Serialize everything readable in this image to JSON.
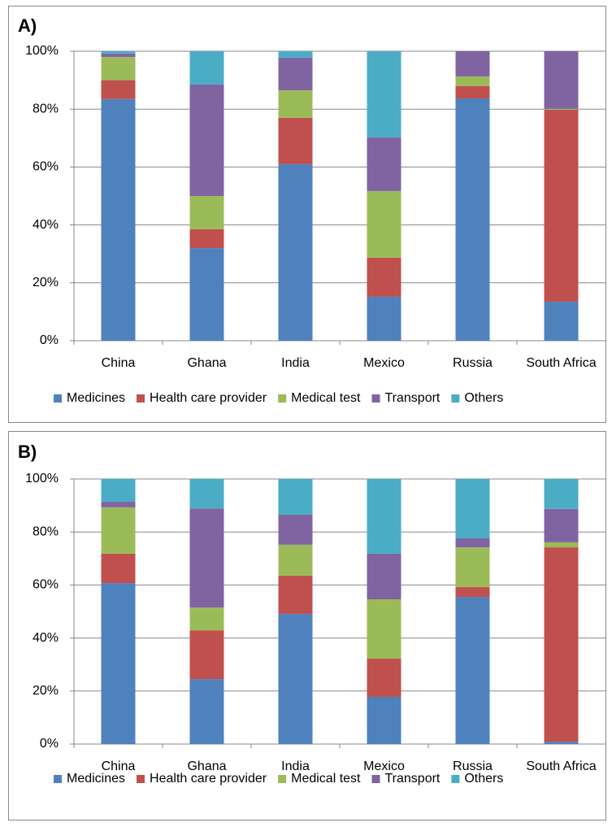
{
  "chart_data": [
    {
      "type": "stacked_bar",
      "title": "A)",
      "categories": [
        "China",
        "Ghana",
        "India",
        "Mexico",
        "Russia",
        "South Africa"
      ],
      "series": [
        {
          "name": "Medicines",
          "color": "#4f81bd",
          "values": [
            83.5,
            32,
            61,
            15.2,
            83.7,
            13.5
          ]
        },
        {
          "name": "Health care provider",
          "color": "#c0504d",
          "values": [
            6.5,
            6.5,
            16,
            13.5,
            4.3,
            66.3
          ]
        },
        {
          "name": "Medical test",
          "color": "#9bbb59",
          "values": [
            8,
            11.5,
            9.5,
            23,
            3.3,
            0.3
          ]
        },
        {
          "name": "Transport",
          "color": "#8064a2",
          "values": [
            1.2,
            38.5,
            11.3,
            18.5,
            8.7,
            19.9
          ]
        },
        {
          "name": "Others",
          "color": "#4bacc6",
          "values": [
            0.8,
            11.5,
            2.2,
            29.8,
            0,
            0
          ]
        }
      ],
      "ylim": [
        0,
        100
      ],
      "yticks": [
        {
          "value": 0,
          "label": "0%"
        },
        {
          "value": 20,
          "label": "20%"
        },
        {
          "value": 40,
          "label": "40%"
        },
        {
          "value": 60,
          "label": "60%"
        },
        {
          "value": 80,
          "label": "80%"
        },
        {
          "value": 100,
          "label": "100%"
        }
      ],
      "grid": true,
      "legend": "bottom"
    },
    {
      "type": "stacked_bar",
      "title": "B)",
      "categories": [
        "China",
        "Ghana",
        "India",
        "Mexico",
        "Russia",
        "South Africa"
      ],
      "series": [
        {
          "name": "Medicines",
          "color": "#4f81bd",
          "values": [
            60.7,
            24.5,
            49.1,
            17.8,
            55.5,
            0.9
          ]
        },
        {
          "name": "Health care provider",
          "color": "#c0504d",
          "values": [
            11.1,
            18.4,
            14.4,
            14.4,
            3.7,
            73.3
          ]
        },
        {
          "name": "Medical test",
          "color": "#9bbb59",
          "values": [
            17.5,
            8.6,
            11.7,
            22.4,
            15,
            1.9
          ]
        },
        {
          "name": "Transport",
          "color": "#8064a2",
          "values": [
            2.1,
            37.4,
            11.3,
            17.2,
            3.4,
            12.6
          ]
        },
        {
          "name": "Others",
          "color": "#4bacc6",
          "values": [
            8.6,
            11.1,
            13.5,
            28.2,
            22.4,
            11.3
          ]
        }
      ],
      "ylim": [
        0,
        100
      ],
      "yticks": [
        {
          "value": 0,
          "label": "0%"
        },
        {
          "value": 20,
          "label": "20%"
        },
        {
          "value": 40,
          "label": "40%"
        },
        {
          "value": 60,
          "label": "60%"
        },
        {
          "value": 80,
          "label": "80%"
        },
        {
          "value": 100,
          "label": "100%"
        }
      ],
      "grid": true,
      "legend": "bottom"
    }
  ]
}
